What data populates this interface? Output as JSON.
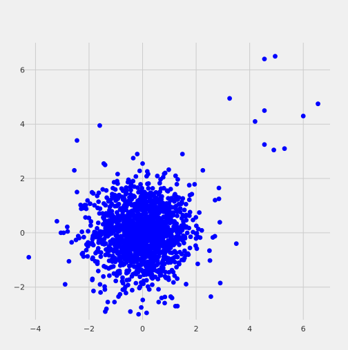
{
  "chart_data": {
    "type": "scatter",
    "title": "",
    "xlabel": "",
    "ylabel": "",
    "xlim": [
      -4.5,
      7.0
    ],
    "ylim": [
      -3.2,
      7.0
    ],
    "grid": true,
    "x_ticks": [
      -4,
      -2,
      0,
      2,
      4,
      6
    ],
    "y_ticks": [
      -2,
      0,
      2,
      4,
      6
    ],
    "x_tick_labels": [
      "−4",
      "−2",
      "0",
      "2",
      "4",
      "6"
    ],
    "y_tick_labels": [
      "−2",
      "0",
      "2",
      "4",
      "6"
    ],
    "colors": {
      "background": "#f0f0f0",
      "grid": "#cbcbcb",
      "point": "#0000ff",
      "text": "#333333"
    },
    "series": [
      {
        "x": [
          4.55,
          4.95,
          3.25,
          4.55,
          4.2,
          6.0,
          6.55,
          4.55,
          4.9,
          5.3,
          -1.6,
          -2.45,
          -2.55,
          -2.45,
          -4.25,
          -2.75,
          -3.05,
          -2.95,
          -2.8,
          -2.65,
          3.5,
          2.9,
          2.55,
          2.25,
          2.85,
          2.85,
          -1.4,
          -1.45,
          -0.15,
          -0.05,
          1.1,
          1.3,
          -0.35,
          0.0,
          -0.2,
          -1.35,
          -1.3,
          -1.05,
          -0.9,
          0.15,
          0.6,
          1.05
        ],
        "y": [
          6.4,
          6.5,
          4.95,
          4.5,
          4.1,
          4.3,
          4.75,
          3.25,
          3.05,
          3.1,
          3.95,
          3.4,
          2.3,
          1.5,
          -0.9,
          -1.05,
          0.0,
          0.0,
          0.05,
          -0.35,
          -0.4,
          -1.85,
          -2.35,
          2.3,
          1.65,
          1.25,
          2.5,
          2.55,
          -3.0,
          -2.75,
          -2.4,
          -2.7,
          2.75,
          2.55,
          2.9,
          -2.8,
          -2.55,
          -2.55,
          -2.35,
          -2.95,
          -2.55,
          -2.35
        ]
      }
    ],
    "cluster": {
      "count": 1450,
      "center": [
        0.0,
        0.0
      ],
      "std": 0.9
    }
  }
}
